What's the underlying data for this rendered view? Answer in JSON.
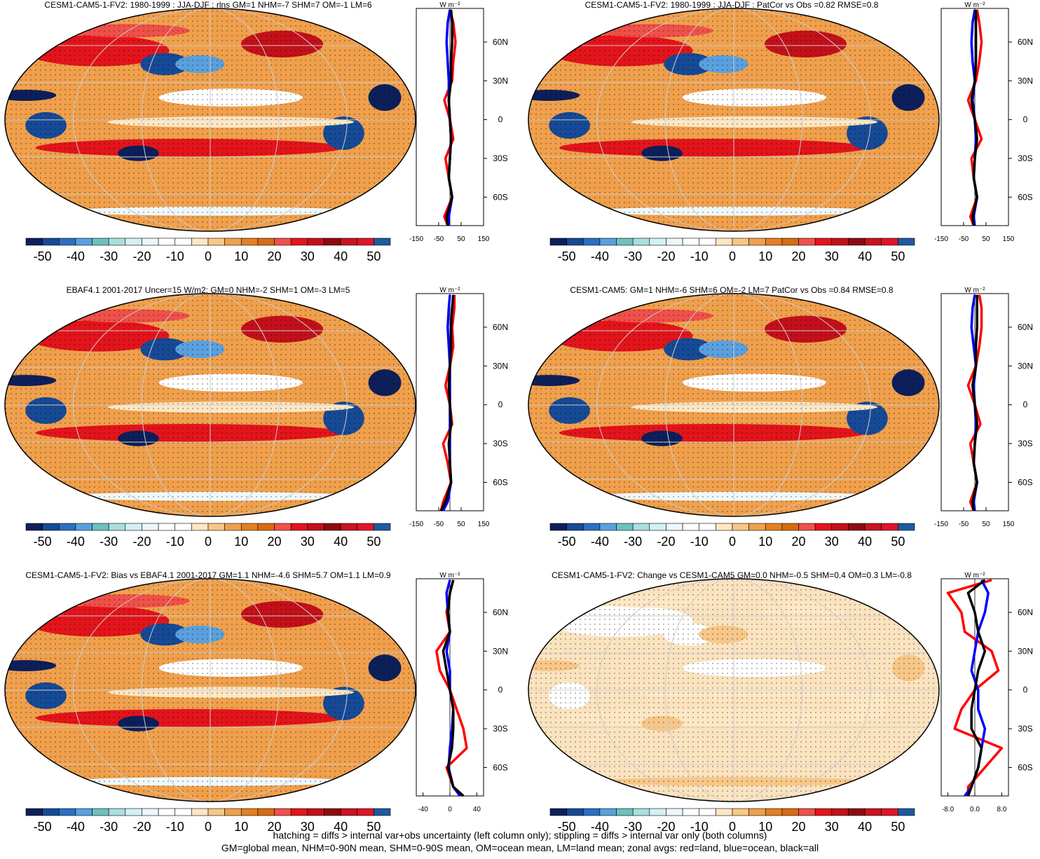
{
  "chart_data": [
    {
      "type": "zonal_map",
      "title": "CESM1-CAM5-1-FV2: 1980-1999 : JJA-DJF : rlns GM=1 NHM=-7 SHM=7 OM=-1 LM=6",
      "colorbar": {
        "range": [
          -55,
          55
        ],
        "ticks": [
          -50,
          -40,
          -30,
          -20,
          -10,
          0,
          10,
          20,
          30,
          40,
          50
        ],
        "colors": [
          "#0d1f5a",
          "#164a96",
          "#2a6fc4",
          "#5aa0de",
          "#6cc1c0",
          "#a9dfdc",
          "#d4f0f7",
          "#eef8fc",
          "#ffffff",
          "#ffffff",
          "#fde7c4",
          "#f8c787",
          "#f0a04c",
          "#e57f22",
          "#d96b12",
          "#f0504a",
          "#e3141b",
          "#c3101a",
          "#8e0a10",
          "#c81420",
          "#e01428",
          "#1d5aa0"
        ]
      },
      "zonal": {
        "units": "W m⁻²",
        "lat": [
          85,
          75,
          60,
          45,
          30,
          15,
          0,
          -15,
          -30,
          -45,
          -60,
          -75,
          -82
        ],
        "xlim": [
          -150,
          150
        ],
        "xticks": [
          -150,
          -50,
          50,
          150
        ],
        "ylim": [
          -82,
          86
        ],
        "yticks": [
          {
            "value": 60,
            "label": "60N"
          },
          {
            "value": 30,
            "label": "30N"
          },
          0,
          {
            "value": -30,
            "label": "30S"
          },
          {
            "value": -60,
            "label": "60S"
          }
        ],
        "series": [
          {
            "color": "#ff0000",
            "values": [
              0,
              15,
              25,
              15,
              10,
              -25,
              0,
              15,
              -20,
              -5,
              10,
              -25,
              -10
            ]
          },
          {
            "color": "#0000ff",
            "values": [
              0,
              -10,
              -15,
              -10,
              -5,
              -5,
              0,
              5,
              0,
              -5,
              10,
              -5,
              -5
            ]
          },
          {
            "color": "#000000",
            "values": [
              5,
              10,
              10,
              5,
              5,
              -5,
              0,
              5,
              0,
              -5,
              10,
              -15,
              -10
            ]
          }
        ]
      }
    },
    {
      "type": "zonal_map",
      "title": "CESM1-CAM5-1-FV2: 1980-1999 : JJA-DJF : PatCor vs Obs =0.82 RMSE=0.8",
      "colorbar": {
        "range": [
          -55,
          55
        ],
        "ticks": [
          -50,
          -40,
          -30,
          -20,
          -10,
          0,
          10,
          20,
          30,
          40,
          50
        ],
        "colors": [
          "#0d1f5a",
          "#164a96",
          "#2a6fc4",
          "#5aa0de",
          "#6cc1c0",
          "#a9dfdc",
          "#d4f0f7",
          "#eef8fc",
          "#ffffff",
          "#ffffff",
          "#fde7c4",
          "#f8c787",
          "#f0a04c",
          "#e57f22",
          "#d96b12",
          "#f0504a",
          "#e3141b",
          "#c3101a",
          "#8e0a10",
          "#c81420",
          "#e01428",
          "#1d5aa0"
        ]
      },
      "zonal": {
        "units": "W m⁻²",
        "lat": [
          85,
          75,
          60,
          45,
          30,
          15,
          0,
          -15,
          -30,
          -45,
          -60,
          -75,
          -82
        ],
        "xlim": [
          -150,
          150
        ],
        "xticks": [
          -150,
          -50,
          50,
          150
        ],
        "ylim": [
          -82,
          86
        ],
        "yticks": [
          {
            "value": 60,
            "label": "60N"
          },
          {
            "value": 30,
            "label": "30N"
          },
          0,
          {
            "value": -30,
            "label": "30S"
          },
          {
            "value": -60,
            "label": "60S"
          }
        ],
        "series": [
          {
            "color": "#ff0000",
            "values": [
              10,
              20,
              30,
              20,
              5,
              -30,
              0,
              30,
              -15,
              -5,
              10,
              -20,
              -5
            ]
          },
          {
            "color": "#0000ff",
            "values": [
              0,
              -10,
              -15,
              -10,
              0,
              -10,
              0,
              5,
              0,
              -5,
              10,
              -5,
              0
            ]
          },
          {
            "color": "#000000",
            "values": [
              5,
              5,
              5,
              5,
              0,
              -15,
              0,
              10,
              0,
              -5,
              10,
              -10,
              -5
            ]
          }
        ]
      }
    },
    {
      "type": "zonal_map",
      "title": "EBAF4.1 2001-2017 Uncer=15 W/m2: GM=0 NHM=-2 SHM=1 OM=-3 LM=5",
      "colorbar": {
        "range": [
          -55,
          55
        ],
        "ticks": [
          -50,
          -40,
          -30,
          -20,
          -10,
          0,
          10,
          20,
          30,
          40,
          50
        ],
        "colors": [
          "#0d1f5a",
          "#164a96",
          "#2a6fc4",
          "#5aa0de",
          "#6cc1c0",
          "#a9dfdc",
          "#d4f0f7",
          "#eef8fc",
          "#ffffff",
          "#ffffff",
          "#fde7c4",
          "#f8c787",
          "#f0a04c",
          "#e57f22",
          "#d96b12",
          "#f0504a",
          "#e3141b",
          "#c3101a",
          "#8e0a10",
          "#c81420",
          "#e01428",
          "#1d5aa0"
        ]
      },
      "zonal": {
        "units": "W m⁻²",
        "lat": [
          85,
          75,
          60,
          45,
          30,
          15,
          0,
          -15,
          -30,
          -45,
          -60,
          -75,
          -82
        ],
        "xlim": [
          -150,
          150
        ],
        "xticks": [
          -150,
          -50,
          50,
          150
        ],
        "ylim": [
          -82,
          86
        ],
        "yticks": [
          {
            "value": 60,
            "label": "60N"
          },
          {
            "value": 30,
            "label": "30N"
          },
          0,
          {
            "value": -30,
            "label": "30S"
          },
          {
            "value": -60,
            "label": "60S"
          }
        ],
        "series": [
          {
            "color": "#ff0000",
            "values": [
              20,
              20,
              10,
              15,
              0,
              -20,
              0,
              10,
              -30,
              -10,
              5,
              -30,
              -40
            ]
          },
          {
            "color": "#0000ff",
            "values": [
              0,
              -5,
              -10,
              -5,
              0,
              0,
              0,
              0,
              0,
              0,
              5,
              -10,
              -30
            ]
          },
          {
            "color": "#000000",
            "values": [
              15,
              10,
              5,
              5,
              0,
              -5,
              0,
              5,
              -5,
              0,
              5,
              -20,
              -40
            ]
          }
        ]
      }
    },
    {
      "type": "zonal_map",
      "title": "CESM1-CAM5: GM=1 NHM=-6 SHM=6 OM=-2 LM=7 PatCor vs Obs =0.84 RMSE=0.8",
      "colorbar": {
        "range": [
          -55,
          55
        ],
        "ticks": [
          -50,
          -40,
          -30,
          -20,
          -10,
          0,
          10,
          20,
          30,
          40,
          50
        ],
        "colors": [
          "#0d1f5a",
          "#164a96",
          "#2a6fc4",
          "#5aa0de",
          "#6cc1c0",
          "#a9dfdc",
          "#d4f0f7",
          "#eef8fc",
          "#ffffff",
          "#ffffff",
          "#fde7c4",
          "#f8c787",
          "#f0a04c",
          "#e57f22",
          "#d96b12",
          "#f0504a",
          "#e3141b",
          "#c3101a",
          "#8e0a10",
          "#c81420",
          "#e01428",
          "#1d5aa0"
        ]
      },
      "zonal": {
        "units": "W m⁻²",
        "lat": [
          85,
          75,
          60,
          45,
          30,
          15,
          0,
          -15,
          -30,
          -45,
          -60,
          -75,
          -82
        ],
        "xlim": [
          -150,
          150
        ],
        "xticks": [
          -150,
          -50,
          50,
          150
        ],
        "ylim": [
          -82,
          86
        ],
        "yticks": [
          {
            "value": 60,
            "label": "60N"
          },
          {
            "value": 30,
            "label": "30N"
          },
          0,
          {
            "value": -30,
            "label": "30S"
          },
          {
            "value": -60,
            "label": "60S"
          }
        ],
        "series": [
          {
            "color": "#ff0000",
            "values": [
              20,
              30,
              30,
              20,
              5,
              -30,
              0,
              25,
              -20,
              -5,
              10,
              -20,
              -5
            ]
          },
          {
            "color": "#0000ff",
            "values": [
              0,
              -10,
              -15,
              -5,
              5,
              -5,
              0,
              5,
              0,
              -5,
              10,
              -5,
              0
            ]
          },
          {
            "color": "#000000",
            "values": [
              10,
              10,
              10,
              5,
              5,
              -10,
              0,
              10,
              0,
              -5,
              10,
              -10,
              -5
            ]
          }
        ]
      }
    },
    {
      "type": "zonal_map",
      "title": "CESM1-CAM5-1-FV2: Bias vs EBAF4.1 2001-2017 GM=1.1 NHM=-4.6 SHM=5.7 OM=1.1 LM=0.9",
      "colorbar": {
        "range": [
          -55,
          55
        ],
        "ticks": [
          -50,
          -40,
          -30,
          -20,
          -10,
          0,
          10,
          20,
          30,
          40,
          50
        ],
        "colors": [
          "#0d1f5a",
          "#164a96",
          "#2a6fc4",
          "#5aa0de",
          "#6cc1c0",
          "#a9dfdc",
          "#d4f0f7",
          "#eef8fc",
          "#ffffff",
          "#ffffff",
          "#fde7c4",
          "#f8c787",
          "#f0a04c",
          "#e57f22",
          "#d96b12",
          "#f0504a",
          "#e3141b",
          "#c3101a",
          "#8e0a10",
          "#c81420",
          "#e01428",
          "#1d5aa0"
        ]
      },
      "zonal": {
        "units": "W m⁻²",
        "lat": [
          85,
          75,
          60,
          45,
          30,
          15,
          0,
          -15,
          -30,
          -45,
          -60,
          -75,
          -82
        ],
        "xlim": [
          -50,
          50
        ],
        "xticks": [
          -40,
          0,
          40
        ],
        "ylim": [
          -82,
          86
        ],
        "yticks": [
          {
            "value": 60,
            "label": "60N"
          },
          {
            "value": 30,
            "label": "30N"
          },
          0,
          {
            "value": -30,
            "label": "30S"
          },
          {
            "value": -60,
            "label": "60S"
          }
        ],
        "series": [
          {
            "color": "#ff0000",
            "values": [
              5,
              0,
              -5,
              0,
              -20,
              -15,
              0,
              10,
              20,
              25,
              -5,
              5,
              20
            ]
          },
          {
            "color": "#0000ff",
            "values": [
              0,
              -5,
              -3,
              0,
              -5,
              0,
              0,
              5,
              3,
              0,
              -2,
              5,
              15
            ]
          },
          {
            "color": "#000000",
            "values": [
              5,
              0,
              -3,
              0,
              -10,
              -5,
              0,
              5,
              5,
              3,
              -3,
              5,
              20
            ]
          }
        ]
      }
    },
    {
      "type": "zonal_map",
      "title": "CESM1-CAM5-1-FV2: Change vs CESM1-CAM5 GM=0.0 NHM=-0.5 SHM=0.4 OM=0.3 LM=-0.8",
      "colorbar": {
        "range": [
          -55,
          55
        ],
        "ticks": [
          -50,
          -40,
          -30,
          -20,
          -10,
          0,
          10,
          20,
          30,
          40,
          50
        ],
        "colors": [
          "#0d1f5a",
          "#164a96",
          "#2a6fc4",
          "#5aa0de",
          "#6cc1c0",
          "#a9dfdc",
          "#d4f0f7",
          "#eef8fc",
          "#ffffff",
          "#ffffff",
          "#fde7c4",
          "#f8c787",
          "#f0a04c",
          "#e57f22",
          "#d96b12",
          "#f0504a",
          "#e3141b",
          "#c3101a",
          "#8e0a10",
          "#c81420",
          "#e01428",
          "#1d5aa0"
        ]
      },
      "zonal": {
        "units": "W m⁻²",
        "lat": [
          85,
          75,
          60,
          45,
          30,
          15,
          0,
          -15,
          -30,
          -45,
          -60,
          -75,
          -82
        ],
        "xlim": [
          -10,
          10
        ],
        "xticks": [
          {
            "value": -8,
            "label": "-8.0"
          },
          {
            "value": 0,
            "label": "0.0"
          },
          {
            "value": 8,
            "label": "8.0"
          }
        ],
        "ylim": [
          -82,
          86
        ],
        "yticks": [
          {
            "value": 60,
            "label": "60N"
          },
          {
            "value": 30,
            "label": "30N"
          },
          0,
          {
            "value": -30,
            "label": "30S"
          },
          {
            "value": -60,
            "label": "60S"
          }
        ],
        "series": [
          {
            "color": "#ff0000",
            "values": [
              5,
              -8,
              -4,
              -3,
              5,
              7,
              0,
              -4,
              -6,
              8,
              3,
              -2,
              -2
            ]
          },
          {
            "color": "#0000ff",
            "values": [
              2,
              4,
              3,
              1,
              0,
              -1,
              1,
              1,
              3,
              2,
              1,
              -1,
              -3
            ]
          },
          {
            "color": "#000000",
            "values": [
              3,
              -2,
              0,
              1,
              3,
              1,
              0,
              -1,
              -1,
              2,
              1,
              -1,
              -2
            ]
          }
        ]
      }
    }
  ],
  "notes": [
    "hatching = diffs > internal var+obs uncertainty (left column only); stippling = diffs > internal var only (both columns)",
    "GM=global mean, NHM=0-90N mean, SHM=0-90S mean, OM=ocean mean, LM=land mean; zonal avgs: red=land, blue=ocean, black=all"
  ]
}
